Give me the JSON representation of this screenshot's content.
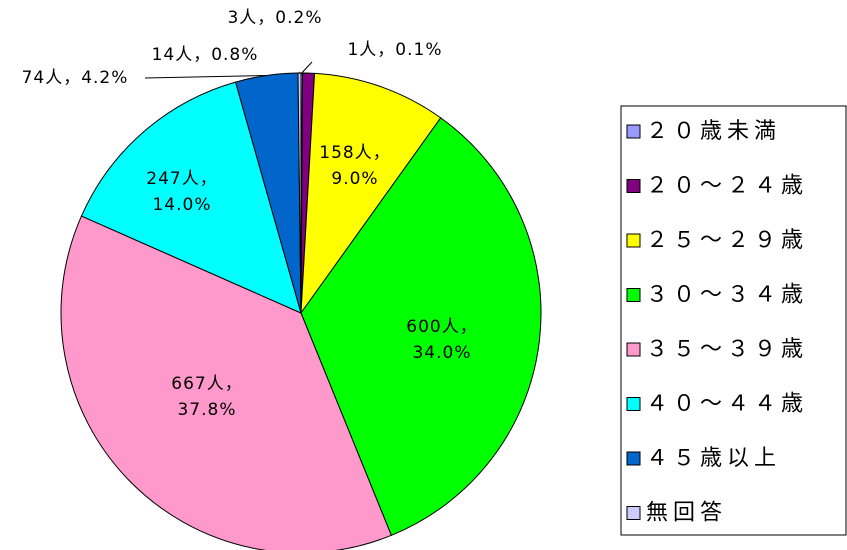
{
  "chart_data": {
    "type": "pie",
    "categories": [
      "２０歳未満",
      "２０～２４歳",
      "２５～２９歳",
      "３０～３４歳",
      "３５～３９歳",
      "４０～４４歳",
      "４５歳以上",
      "無回答"
    ],
    "values": [
      0.1,
      0.8,
      9.0,
      34.0,
      37.8,
      14.0,
      4.2,
      0.2
    ],
    "value_labels": [
      "1人，0.1%",
      "14人，0.8%",
      "158人，9.0%",
      "600人，34.0%",
      "667人，37.8%",
      "247人，14.0%",
      "74人，4.2%",
      "3人，0.2%"
    ],
    "colors": [
      "#9999ff",
      "#800080",
      "#ffff00",
      "#00ff00",
      "#ff99cc",
      "#00ffff",
      "#0066cc",
      "#ccccff"
    ],
    "legend": "right"
  }
}
